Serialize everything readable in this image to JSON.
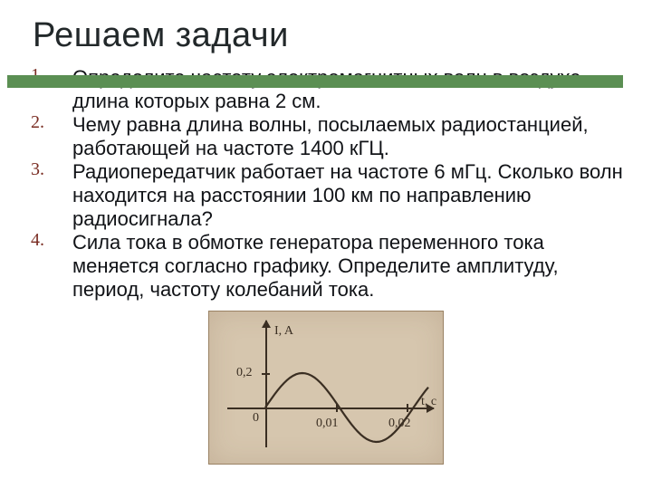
{
  "title": "Решаем задачи",
  "accent_bar_color": "#5b8f53",
  "number_color": "#7a2d23",
  "items": [
    {
      "num": "1.",
      "text": "Определите частоту электромагнитных волн в воздухе, длина которых равна 2 см."
    },
    {
      "num": "2.",
      "text": "Чему равна длина волны, посылаемых радиостанцией, работающей на частоте 1400 кГЦ."
    },
    {
      "num": "3.",
      "text": "Радиопередатчик работает на частоте 6 мГц. Сколько волн находится на расстоянии 100 км по направлению радиосигнала?"
    },
    {
      "num": "4.",
      "text": "Сила тока в обмотке генератора переменного тока меняется согласно графику. Определите амплитуду, период, частоту колебаний тока."
    }
  ],
  "chart": {
    "type": "line",
    "background_color": "#d6c6ae",
    "axis_color": "#3a2e22",
    "line_color": "#3a2e22",
    "line_width": 2.2,
    "y_axis_label": "I, A",
    "x_axis_label": "t, c",
    "origin_label": "0",
    "y_tick_value": 0.2,
    "y_tick_label": "0,2",
    "x_ticks": [
      0.01,
      0.02
    ],
    "x_tick_labels": [
      "0,01",
      "0,02"
    ],
    "xlim": [
      0,
      0.022
    ],
    "ylim": [
      -0.3,
      0.3
    ],
    "amplitude": 0.2,
    "period": 0.02,
    "samples_per_period": 48,
    "label_fontsize": 14,
    "font_family": "Georgia"
  }
}
